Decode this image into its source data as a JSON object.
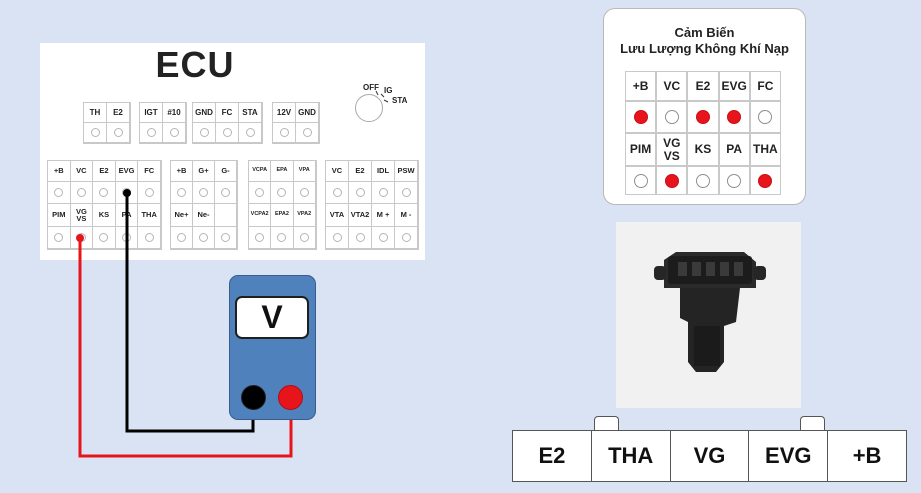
{
  "ecu": {
    "title": "ECU",
    "ignition": {
      "off": "OFF",
      "ig": "IG",
      "sta": "STA"
    },
    "top_connectors": [
      [
        "TH",
        "E2"
      ],
      [
        "IGT",
        "#10"
      ],
      [
        "GND",
        "FC",
        "STA"
      ],
      [
        "12V",
        "GND"
      ]
    ],
    "bottom_connectors": [
      {
        "row1": [
          "+B",
          "VC",
          "E2",
          "EVG",
          "FC"
        ],
        "row2": [
          "PIM",
          "VG\nVS",
          "KS",
          "PA",
          "THA"
        ]
      },
      {
        "row1": [
          "+B",
          "G+",
          "G-"
        ],
        "row2": [
          "Ne+",
          "Ne-",
          ""
        ]
      },
      {
        "row1": [
          "VCPA",
          "EPA",
          "VPA"
        ],
        "row2": [
          "VCPA2",
          "EPA2",
          "VPA2"
        ]
      },
      {
        "row1": [
          "VC",
          "E2",
          "IDL",
          "PSW"
        ],
        "row2": [
          "VTA",
          "VTA2",
          "M +",
          "M -"
        ]
      }
    ]
  },
  "meter": {
    "label": "V",
    "probe_colors": {
      "com": "#000000",
      "positive": "#e8141c"
    }
  },
  "sensor_card": {
    "title_line1": "Cảm Biến",
    "title_line2": "Lưu Lượng Không Khí Nạp",
    "row1_labels": [
      "+B",
      "VC",
      "E2",
      "EVG",
      "FC"
    ],
    "row1_active": [
      true,
      false,
      true,
      true,
      false
    ],
    "row2_labels": [
      "PIM",
      "VG\nVS",
      "KS",
      "PA",
      "THA"
    ],
    "row2_active": [
      false,
      true,
      false,
      false,
      true
    ],
    "active_color": "#e8141c"
  },
  "connector": {
    "pins": [
      "E2",
      "THA",
      "VG",
      "EVG",
      "+B"
    ]
  },
  "colors": {
    "background": "#dae3f3",
    "meter_body": "#4f81bd",
    "wire_red": "#e8141c",
    "wire_black": "#000000"
  }
}
